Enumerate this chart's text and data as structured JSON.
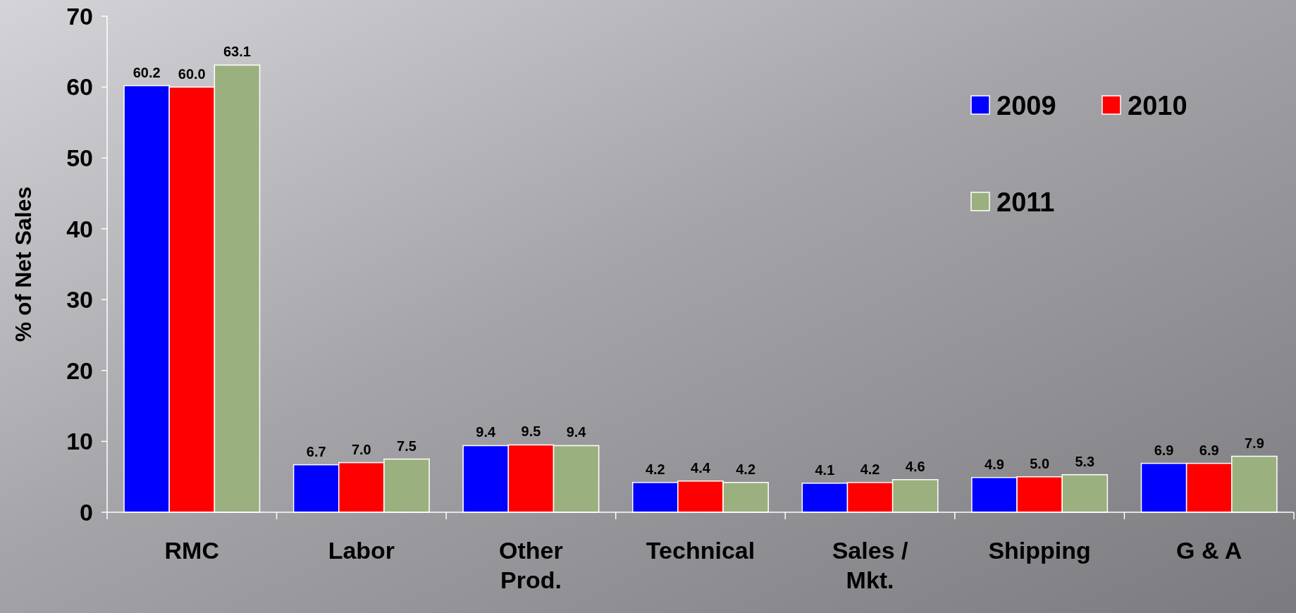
{
  "chart_data": {
    "type": "bar",
    "ylabel": "% of Net Sales",
    "categories": [
      "RMC",
      "Labor",
      "Other Prod.",
      "Technical",
      "Sales / Mkt.",
      "Shipping",
      "G & A"
    ],
    "series": [
      {
        "name": "2009",
        "color": "#0000ff",
        "values": [
          60.2,
          6.7,
          9.4,
          4.2,
          4.1,
          4.9,
          6.9
        ],
        "value_labels": [
          "60.2",
          "6.7",
          "9.4",
          "4.2",
          "4.1",
          "4.9",
          "6.9"
        ]
      },
      {
        "name": "2010",
        "color": "#ff0000",
        "values": [
          60.0,
          7.0,
          9.5,
          4.4,
          4.2,
          5.0,
          6.9
        ],
        "value_labels": [
          "60.0",
          "7.0",
          "9.5",
          "4.4",
          "4.2",
          "5.0",
          "6.9"
        ]
      },
      {
        "name": "2011",
        "color": "#9bb07f",
        "values": [
          63.1,
          7.5,
          9.4,
          4.2,
          4.6,
          5.3,
          7.9
        ],
        "value_labels": [
          "63.1",
          "7.5",
          "9.4",
          "4.2",
          "4.6",
          "5.3",
          "7.9"
        ]
      }
    ],
    "ylim": [
      0,
      70
    ],
    "yticks": [
      0,
      10,
      20,
      30,
      40,
      50,
      60,
      70
    ],
    "legend": "top right",
    "grid": false
  }
}
